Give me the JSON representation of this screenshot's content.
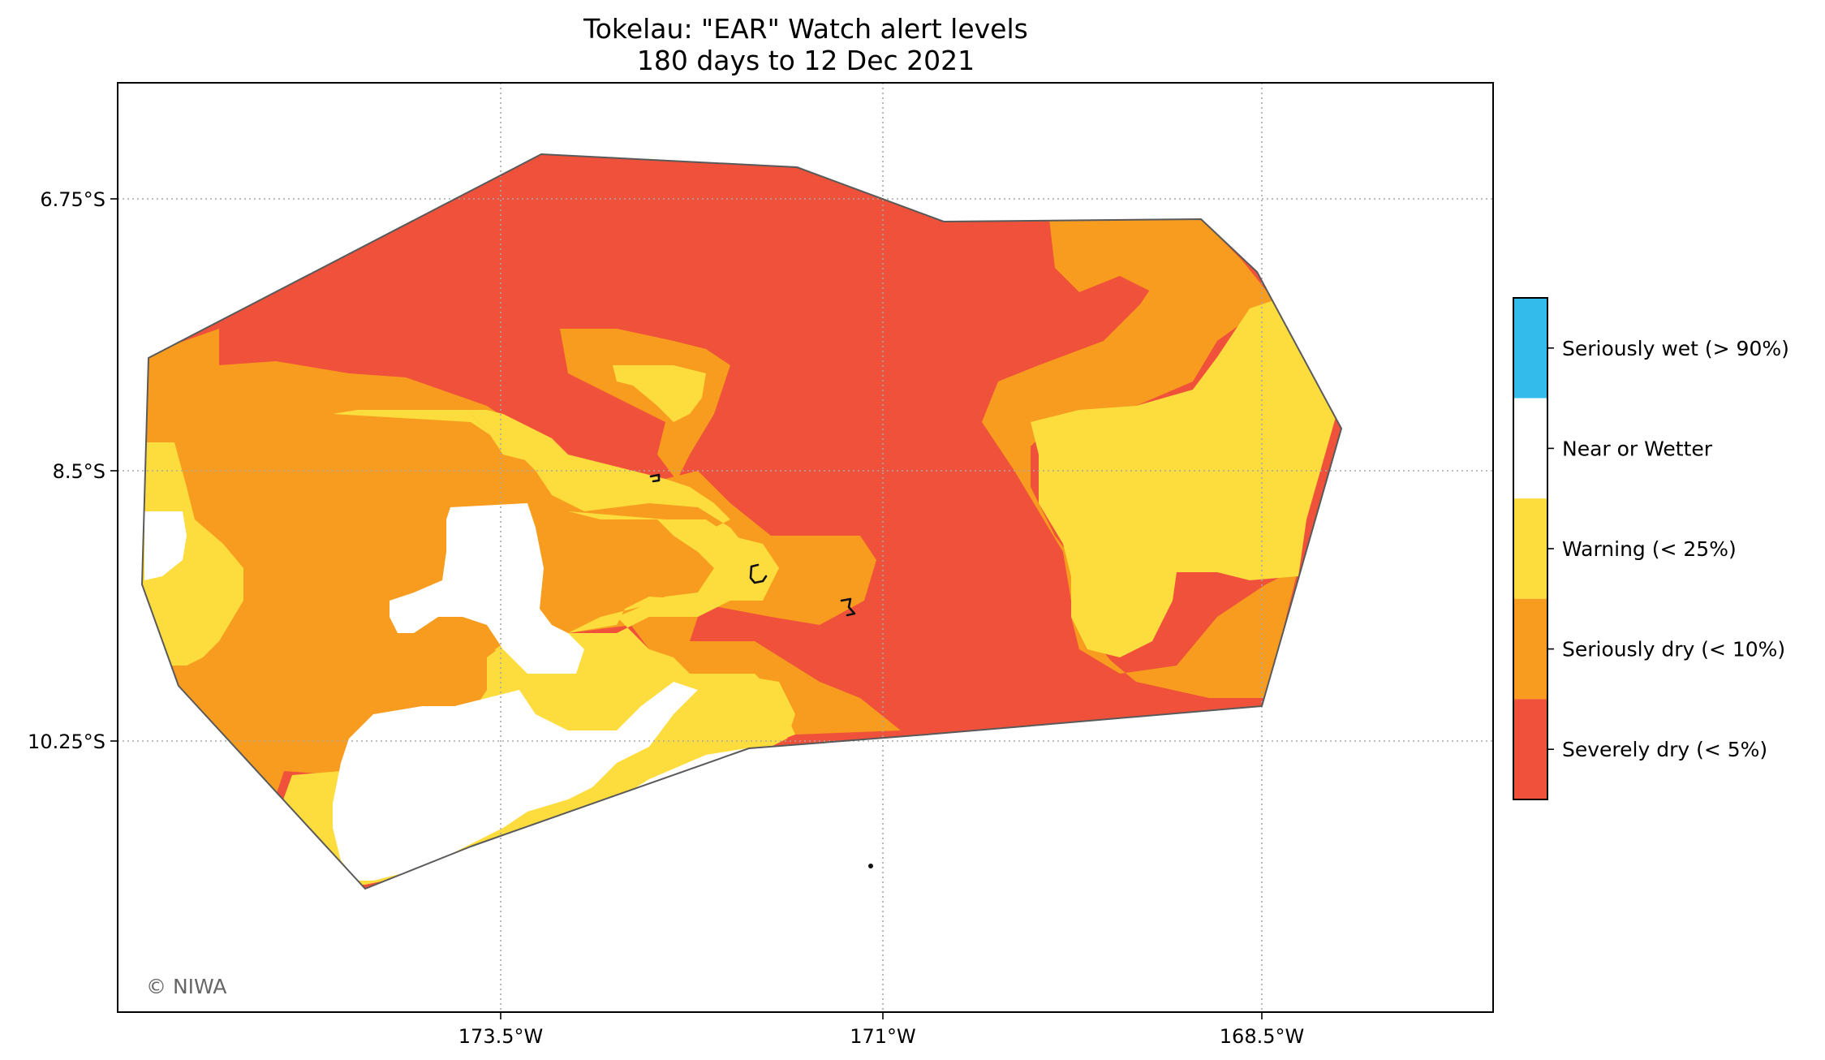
{
  "title": {
    "line1": "Tokelau: \"EAR\" Watch alert levels",
    "line2": "180 days to 12 Dec 2021"
  },
  "credit": "© NIWA",
  "axes": {
    "longitude_ticks": [
      "173.5°W",
      "171°W",
      "168.5°W"
    ],
    "latitude_ticks": [
      "6.75°S",
      "8.5°S",
      "10.25°S"
    ],
    "gridlines": "dotted"
  },
  "legend": {
    "placement": "right",
    "items": [
      {
        "label": "Seriously wet (> 90%)",
        "color": "#33bbec"
      },
      {
        "label": "Near or Wetter",
        "color": "#ffffff"
      },
      {
        "label": "Warning (< 25%)",
        "color": "#fddc3d"
      },
      {
        "label": "Seriously dry (< 10%)",
        "color": "#f79c1f"
      },
      {
        "label": "Severely dry (< 5%)",
        "color": "#f0513a"
      }
    ]
  },
  "colors": {
    "severely_dry": "#f0513a",
    "seriously_dry": "#f79c1f",
    "warning": "#fddc3d",
    "near_or_wetter": "#ffffff",
    "outline": "#5a5a5a"
  }
}
